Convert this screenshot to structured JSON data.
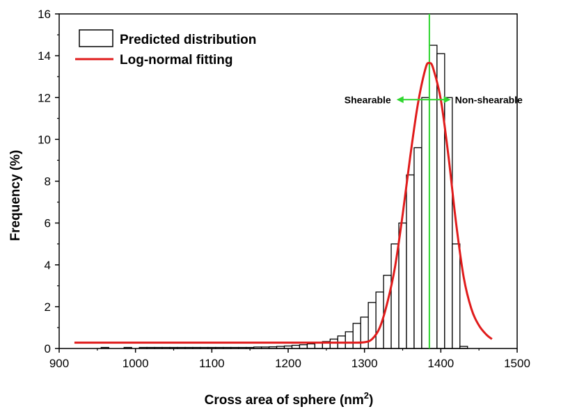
{
  "chart_data": {
    "type": "bar",
    "xlabel": "Cross area of sphere (nm",
    "xlabel_sup": "2",
    "xlabel_end": ")",
    "ylabel": "Frequency (%)",
    "xlim": [
      900,
      1500
    ],
    "ylim": [
      0,
      16
    ],
    "xticks": [
      900,
      1000,
      1100,
      1200,
      1300,
      1400,
      1500
    ],
    "yticks": [
      0,
      2,
      4,
      6,
      8,
      10,
      12,
      14,
      16
    ],
    "grid": false,
    "legend_position": "top-left",
    "bin_width": 10,
    "series": [
      {
        "name": "Predicted distribution",
        "kind": "histogram",
        "color": "#000000",
        "fill": "#ffffff",
        "x": [
          960,
          990,
          1010,
          1020,
          1030,
          1040,
          1050,
          1060,
          1070,
          1080,
          1090,
          1100,
          1110,
          1120,
          1130,
          1140,
          1150,
          1160,
          1170,
          1180,
          1190,
          1200,
          1210,
          1220,
          1230,
          1240,
          1250,
          1260,
          1270,
          1280,
          1290,
          1300,
          1310,
          1320,
          1330,
          1340,
          1350,
          1360,
          1370,
          1380,
          1390,
          1400,
          1410,
          1420,
          1430
        ],
        "values": [
          0.05,
          0.05,
          0.05,
          0.05,
          0.05,
          0.05,
          0.05,
          0.05,
          0.05,
          0.05,
          0.05,
          0.05,
          0.05,
          0.05,
          0.05,
          0.05,
          0.05,
          0.07,
          0.07,
          0.08,
          0.1,
          0.12,
          0.15,
          0.18,
          0.22,
          0.27,
          0.33,
          0.45,
          0.6,
          0.8,
          1.2,
          1.5,
          2.2,
          2.7,
          3.5,
          5.0,
          6.0,
          8.3,
          9.6,
          12.0,
          14.5,
          14.1,
          12.0,
          5.0,
          0.1
        ]
      },
      {
        "name": "Log-normal fitting",
        "kind": "line",
        "color": "#e01b1b",
        "x": [
          920,
          1000,
          1100,
          1200,
          1280,
          1300,
          1310,
          1320,
          1330,
          1340,
          1350,
          1360,
          1370,
          1380,
          1385,
          1390,
          1400,
          1410,
          1420,
          1430,
          1440,
          1450,
          1460,
          1467
        ],
        "values": [
          0.28,
          0.28,
          0.28,
          0.28,
          0.28,
          0.3,
          0.45,
          1.0,
          2.2,
          3.9,
          6.4,
          9.2,
          11.7,
          13.4,
          13.65,
          13.4,
          11.9,
          9.2,
          6.0,
          3.4,
          1.9,
          1.1,
          0.65,
          0.45
        ]
      }
    ],
    "threshold": {
      "x": 1385,
      "color": "#2fd62f"
    },
    "annotations": {
      "left": "Shearable",
      "right": "Non-shearable",
      "arrow_y": 11.9,
      "arrow_from": 1342,
      "arrow_to": 1413,
      "color": "#2fd62f"
    }
  }
}
